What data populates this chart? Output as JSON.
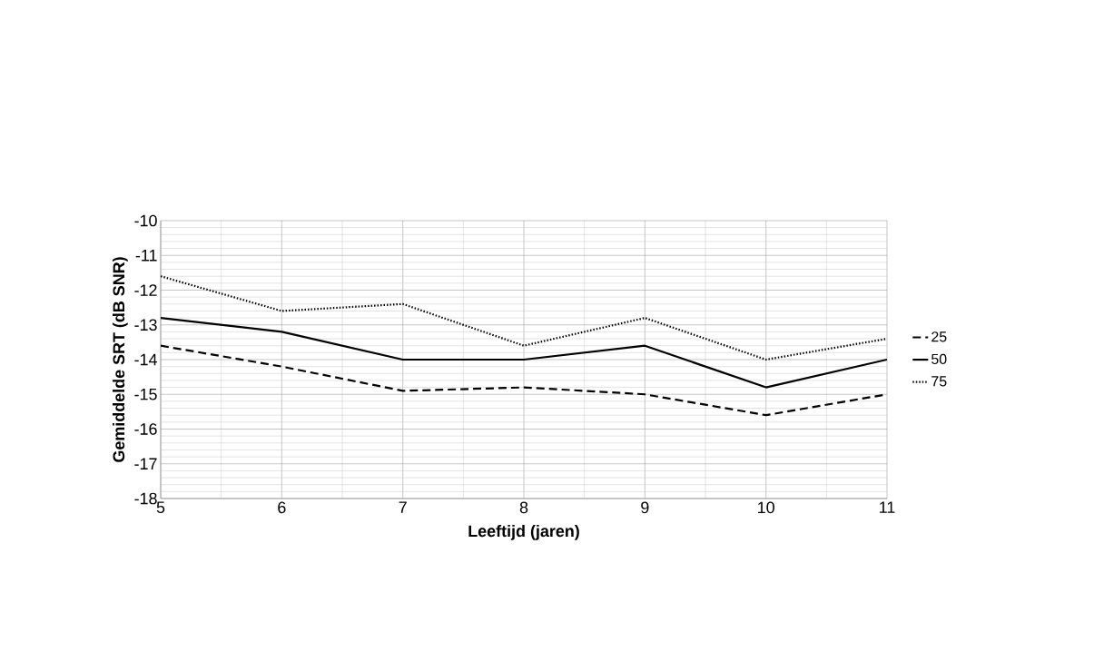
{
  "chart_data": {
    "type": "line",
    "xlabel": "Leeftijd (jaren)",
    "ylabel": "Gemiddelde SRT (dB SNR)",
    "x": [
      5,
      6,
      7,
      8,
      9,
      10,
      11
    ],
    "series": [
      {
        "name": "25",
        "color": "#000000",
        "line_style": "dashed",
        "values": [
          -13.6,
          -14.2,
          -14.9,
          -14.8,
          -15.0,
          -15.6,
          -15.0
        ]
      },
      {
        "name": "50",
        "color": "#000000",
        "line_style": "solid",
        "values": [
          -12.8,
          -13.2,
          -14.0,
          -14.0,
          -13.6,
          -14.8,
          -14.0
        ]
      },
      {
        "name": "75",
        "color": "#000000",
        "line_style": "dotted",
        "values": [
          -11.6,
          -12.6,
          -12.4,
          -13.6,
          -12.8,
          -14.0,
          -13.4
        ]
      }
    ],
    "xlim": [
      5,
      11
    ],
    "ylim": [
      -18,
      -10
    ],
    "xticks": [
      5,
      6,
      7,
      8,
      9,
      10,
      11
    ],
    "yticks": [
      -18,
      -17,
      -16,
      -15,
      -14,
      -13,
      -12,
      -11,
      -10
    ],
    "grid": true,
    "legend": "right",
    "marker": "none"
  }
}
